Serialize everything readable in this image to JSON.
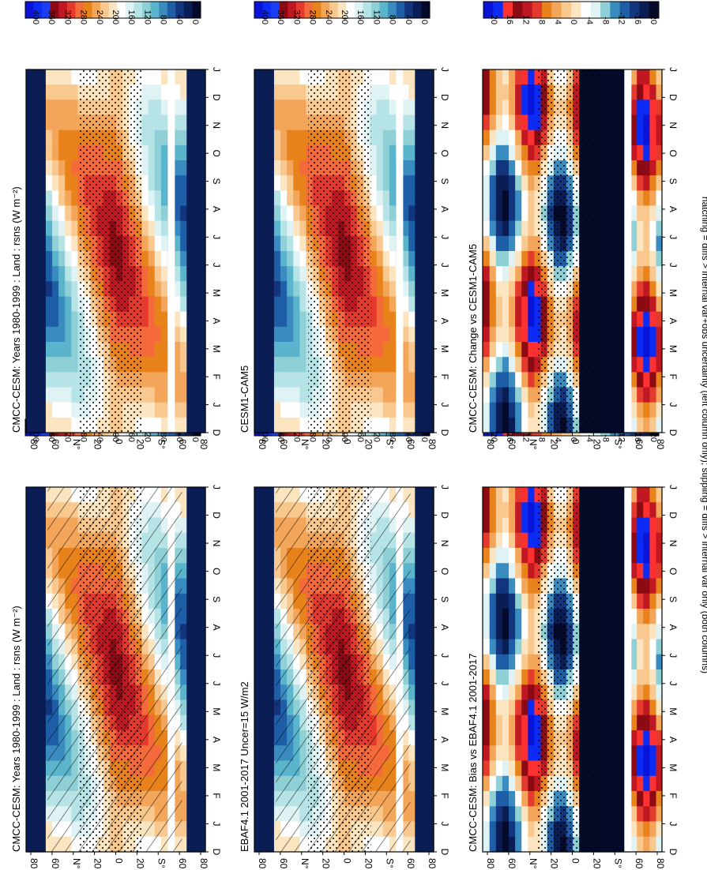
{
  "figure": {
    "footer": "hatching = diffs > internal var+obs uncertainty (left column only); stippling = diffs > internal var only (both columns)"
  },
  "chart_data": [
    {
      "type": "heatmap",
      "title": "CMCC-CESM: Years 1980-1999 : Land : rsns (W m⁻²)",
      "x_ticks": [
        "D",
        "J",
        "F",
        "M",
        "A",
        "M",
        "J",
        "J",
        "A",
        "S",
        "O",
        "N",
        "D",
        "J"
      ],
      "y_ticks": [
        "80",
        "60",
        "N°",
        "20",
        "0",
        "20",
        "S°",
        "60",
        "80"
      ],
      "colorbar": {
        "labels": [
          "400",
          "360",
          "320",
          "280",
          "240",
          "200",
          "160",
          "120",
          "80",
          "40",
          "0"
        ],
        "colors": [
          "#0a14d8",
          "#0b2cf5",
          "#1b3ef5",
          "#8c0a14",
          "#c01822",
          "#e43a2e",
          "#f46a3a",
          "#e8821a",
          "#f3a65a",
          "#f8c88e",
          "#fbe5c0",
          "#ffffff",
          "#dff2f4",
          "#b5e3e6",
          "#8fcfd6",
          "#5ab4cc",
          "#3a8cc0",
          "#1d5ea6",
          "#12357d",
          "#0b1d55",
          "#050a2a"
        ]
      },
      "stippling": true,
      "hatching": true
    },
    {
      "type": "heatmap",
      "title": "EBAF4.1 2001-2017 Uncer=15 W/m2",
      "x_ticks": [
        "D",
        "J",
        "F",
        "M",
        "A",
        "M",
        "J",
        "J",
        "A",
        "S",
        "O",
        "N",
        "D",
        "J"
      ],
      "y_ticks": [
        "80",
        "60",
        "N°",
        "20",
        "0",
        "20",
        "S°",
        "60",
        "80"
      ],
      "colorbar": {
        "labels": [
          "400",
          "360",
          "320",
          "280",
          "240",
          "200",
          "160",
          "120",
          "80",
          "40",
          "0"
        ]
      },
      "stippling": true,
      "hatching": true
    },
    {
      "type": "heatmap",
      "title": "CMCC-CESM: Bias vs EBAF4.1 2001-2017",
      "x_ticks": [
        "D",
        "J",
        "F",
        "M",
        "A",
        "M",
        "J",
        "J",
        "A",
        "S",
        "O",
        "N",
        "D",
        "J"
      ],
      "y_ticks": [
        "80",
        "60",
        "N°",
        "20",
        "0",
        "20",
        "S°",
        "60",
        "80"
      ],
      "colorbar": {
        "labels": [
          "20",
          "16",
          "12",
          "8",
          "4",
          "0",
          "-4",
          "-8",
          "-12",
          "-16",
          "-20"
        ]
      },
      "stippling": true,
      "hatching": true
    },
    {
      "type": "heatmap",
      "title": "CMCC-CESM: Years 1980-1999 : Land : rsns (W m⁻²)",
      "x_ticks": [
        "D",
        "J",
        "F",
        "M",
        "A",
        "M",
        "J",
        "J",
        "A",
        "S",
        "O",
        "N",
        "D",
        "J"
      ],
      "y_ticks": [
        "80",
        "60",
        "N°",
        "20",
        "0",
        "20",
        "S°",
        "60",
        "80"
      ],
      "colorbar": {
        "labels": [
          "400",
          "360",
          "320",
          "280",
          "240",
          "200",
          "160",
          "120",
          "80",
          "40",
          "0"
        ]
      },
      "stippling": true,
      "hatching": false
    },
    {
      "type": "heatmap",
      "title": "CESM1-CAM5",
      "x_ticks": [
        "D",
        "J",
        "F",
        "M",
        "A",
        "M",
        "J",
        "J",
        "A",
        "S",
        "O",
        "N",
        "D",
        "J"
      ],
      "y_ticks": [
        "80",
        "60",
        "N°",
        "20",
        "0",
        "20",
        "S°",
        "60",
        "80"
      ],
      "colorbar": {
        "labels": [
          "400",
          "360",
          "320",
          "280",
          "240",
          "200",
          "160",
          "120",
          "80",
          "40",
          "0"
        ]
      },
      "stippling": true,
      "hatching": false
    },
    {
      "type": "heatmap",
      "title": "CMCC-CESM: Change vs CESM1-CAM5",
      "x_ticks": [
        "D",
        "J",
        "F",
        "M",
        "A",
        "M",
        "J",
        "J",
        "A",
        "S",
        "O",
        "N",
        "D",
        "J"
      ],
      "y_ticks": [
        "80",
        "60",
        "N°",
        "20",
        "0",
        "20",
        "S°",
        "60",
        "80"
      ],
      "colorbar": {
        "labels": [
          "20",
          "16",
          "12",
          "8",
          "4",
          "0",
          "-4",
          "-8",
          "-12",
          "-16",
          "-20"
        ]
      },
      "stippling": true,
      "hatching": false
    }
  ]
}
